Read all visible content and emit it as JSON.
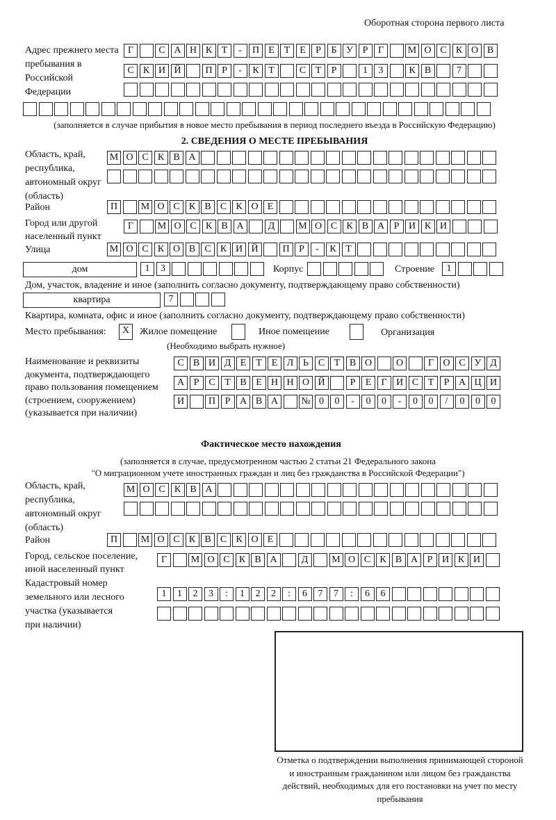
{
  "header": {
    "page_side": "Оборотная сторона первого листа"
  },
  "previous_address": {
    "label": "Адрес прежнего места пребывания в Российской Федерации",
    "rows": [
      [
        "Г",
        "",
        "С",
        "А",
        "Н",
        "К",
        "Т",
        "-",
        "П",
        "Е",
        "Т",
        "Е",
        "Р",
        "Б",
        "У",
        "Р",
        "Г",
        "",
        "М",
        "О",
        "С",
        "К",
        "О",
        "В"
      ],
      [
        "С",
        "К",
        "И",
        "Й",
        "",
        "П",
        "Р",
        "-",
        "К",
        "Т",
        "",
        "С",
        "Т",
        "Р",
        "",
        "1",
        "3",
        "",
        "К",
        "В",
        "",
        "7",
        "",
        ""
      ],
      [
        "",
        "",
        "",
        "",
        "",
        "",
        "",
        "",
        "",
        "",
        "",
        "",
        "",
        "",
        "",
        "",
        "",
        "",
        "",
        "",
        "",
        "",
        "",
        ""
      ],
      [
        "",
        "",
        "",
        "",
        "",
        "",
        "",
        "",
        "",
        "",
        "",
        "",
        "",
        "",
        "",
        "",
        "",
        "",
        "",
        "",
        "",
        "",
        "",
        "",
        "",
        "",
        "",
        "",
        "",
        ""
      ]
    ],
    "note": "(заполняется в случае прибытия в новое место пребывания в период последнего въезда в Российскую Федерацию)"
  },
  "section2": {
    "title": "2. СВЕДЕНИЯ О МЕСТЕ ПРЕБЫВАНИЯ",
    "region_label": "Область, край, республика, автономный округ (область)",
    "region_rows": [
      [
        "М",
        "О",
        "С",
        "К",
        "В",
        "А",
        "",
        "",
        "",
        "",
        "",
        "",
        "",
        "",
        "",
        "",
        "",
        "",
        "",
        "",
        "",
        "",
        "",
        "",
        ""
      ],
      [
        "",
        "",
        "",
        "",
        "",
        "",
        "",
        "",
        "",
        "",
        "",
        "",
        "",
        "",
        "",
        "",
        "",
        "",
        "",
        "",
        "",
        "",
        "",
        "",
        ""
      ]
    ],
    "district_label": "Район",
    "district_row": [
      "П",
      "",
      "М",
      "О",
      "С",
      "К",
      "В",
      "С",
      "К",
      "О",
      "Е",
      "",
      "",
      "",
      "",
      "",
      "",
      "",
      "",
      "",
      "",
      "",
      "",
      "",
      ""
    ],
    "city_label": "Город или другой населенный пункт",
    "city_row": [
      "Г",
      "",
      "М",
      "О",
      "С",
      "К",
      "В",
      "А",
      "",
      "Д",
      "",
      "М",
      "О",
      "С",
      "К",
      "В",
      "А",
      "Р",
      "И",
      "К",
      "И",
      "",
      "",
      ""
    ],
    "street_label": "Улица",
    "street_row": [
      "М",
      "О",
      "С",
      "К",
      "О",
      "В",
      "С",
      "К",
      "И",
      "Й",
      "",
      "П",
      "Р",
      "-",
      "К",
      "Т",
      "",
      "",
      "",
      "",
      "",
      "",
      "",
      "",
      ""
    ],
    "house_type": "дом",
    "house_row": [
      "1",
      "3",
      "",
      "",
      "",
      "",
      "",
      ""
    ],
    "korpus_label": "Корпус",
    "korpus_row": [
      "",
      "",
      "",
      "",
      ""
    ],
    "building_label": "Строение",
    "building_row": [
      "1",
      "",
      "",
      ""
    ],
    "house_note": "Дом, участок, владение и иное (заполнить согласно документу, подтверждающему право собственности)",
    "flat_type": "квартира",
    "flat_row": [
      "7",
      "",
      "",
      ""
    ],
    "flat_note": "Квартира, комната, офис и иное (заполнить согласно документу, подтверждающему право собственности)",
    "place_label": "Место пребывания:",
    "place_options": [
      {
        "mark": "X",
        "label": "Жилое помещение"
      },
      {
        "mark": "",
        "label": "Иное помещение"
      },
      {
        "mark": "",
        "label": "Организация"
      }
    ],
    "place_note": "(Необходимо выбрать нужное)",
    "doc_label": "Наименование и реквизиты документа, подтверждающего право пользования помещением (строением, сооружением) (указывается при наличии)",
    "doc_rows": [
      [
        "С",
        "В",
        "И",
        "Д",
        "Е",
        "Т",
        "Е",
        "Л",
        "Ь",
        "С",
        "Т",
        "В",
        "О",
        "",
        "О",
        "",
        "Г",
        "О",
        "С",
        "У",
        "Д"
      ],
      [
        "А",
        "Р",
        "С",
        "Т",
        "В",
        "Е",
        "Н",
        "Н",
        "О",
        "Й",
        "",
        "Р",
        "Е",
        "Г",
        "И",
        "С",
        "Т",
        "Р",
        "А",
        "Ц",
        "И"
      ],
      [
        "И",
        "",
        "П",
        "Р",
        "А",
        "В",
        "А",
        "",
        "№",
        "0",
        "0",
        "-",
        "0",
        "0",
        "-",
        "0",
        "0",
        "/",
        "0",
        "0",
        "0"
      ]
    ]
  },
  "actual": {
    "title": "Фактическое место нахождения",
    "note1": "(заполняется в случае, предусмотренном частью 2 статьи 21 Федерального закона",
    "note2": "\"О миграционном учете иностранных граждан и лиц без гражданства в Российской Федерации\")",
    "region_label": "Область, край, республика, автономный округ (область)",
    "region_rows": [
      [
        "М",
        "О",
        "С",
        "К",
        "В",
        "А",
        "",
        "",
        "",
        "",
        "",
        "",
        "",
        "",
        "",
        "",
        "",
        "",
        "",
        "",
        "",
        "",
        "",
        ""
      ],
      [
        "",
        "",
        "",
        "",
        "",
        "",
        "",
        "",
        "",
        "",
        "",
        "",
        "",
        "",
        "",
        "",
        "",
        "",
        "",
        "",
        "",
        "",
        "",
        ""
      ]
    ],
    "district_label": "Район",
    "district_row": [
      "П",
      "",
      "М",
      "О",
      "С",
      "К",
      "В",
      "С",
      "К",
      "О",
      "Е",
      "",
      "",
      "",
      "",
      "",
      "",
      "",
      "",
      "",
      "",
      "",
      "",
      "",
      ""
    ],
    "city_label": "Город, сельское поселение, иной населенный пункт",
    "city_row": [
      "Г",
      "",
      "М",
      "О",
      "С",
      "К",
      "В",
      "А",
      "",
      "Д",
      "",
      "М",
      "О",
      "С",
      "К",
      "В",
      "А",
      "Р",
      "И",
      "К",
      "И",
      ""
    ],
    "cadastral_label": "Кадастровый номер земельного или лесного участка (указывается при наличии)",
    "cadastral_rows": [
      [
        "1",
        "1",
        "2",
        "3",
        ":",
        "1",
        "2",
        "2",
        ":",
        "6",
        "7",
        "7",
        ":",
        "6",
        "6",
        "",
        "",
        "",
        "",
        "",
        "",
        ""
      ],
      [
        "",
        "",
        "",
        "",
        "",
        "",
        "",
        "",
        "",
        "",
        "",
        "",
        "",
        "",
        "",
        "",
        "",
        "",
        "",
        "",
        "",
        ""
      ]
    ]
  },
  "confirmation_caption": "Отметка о подтверждении выполнения принимающей стороной и иностранным гражданином или лицом без гражданства действий, необходимых для его постановки на учет по месту пребывания"
}
